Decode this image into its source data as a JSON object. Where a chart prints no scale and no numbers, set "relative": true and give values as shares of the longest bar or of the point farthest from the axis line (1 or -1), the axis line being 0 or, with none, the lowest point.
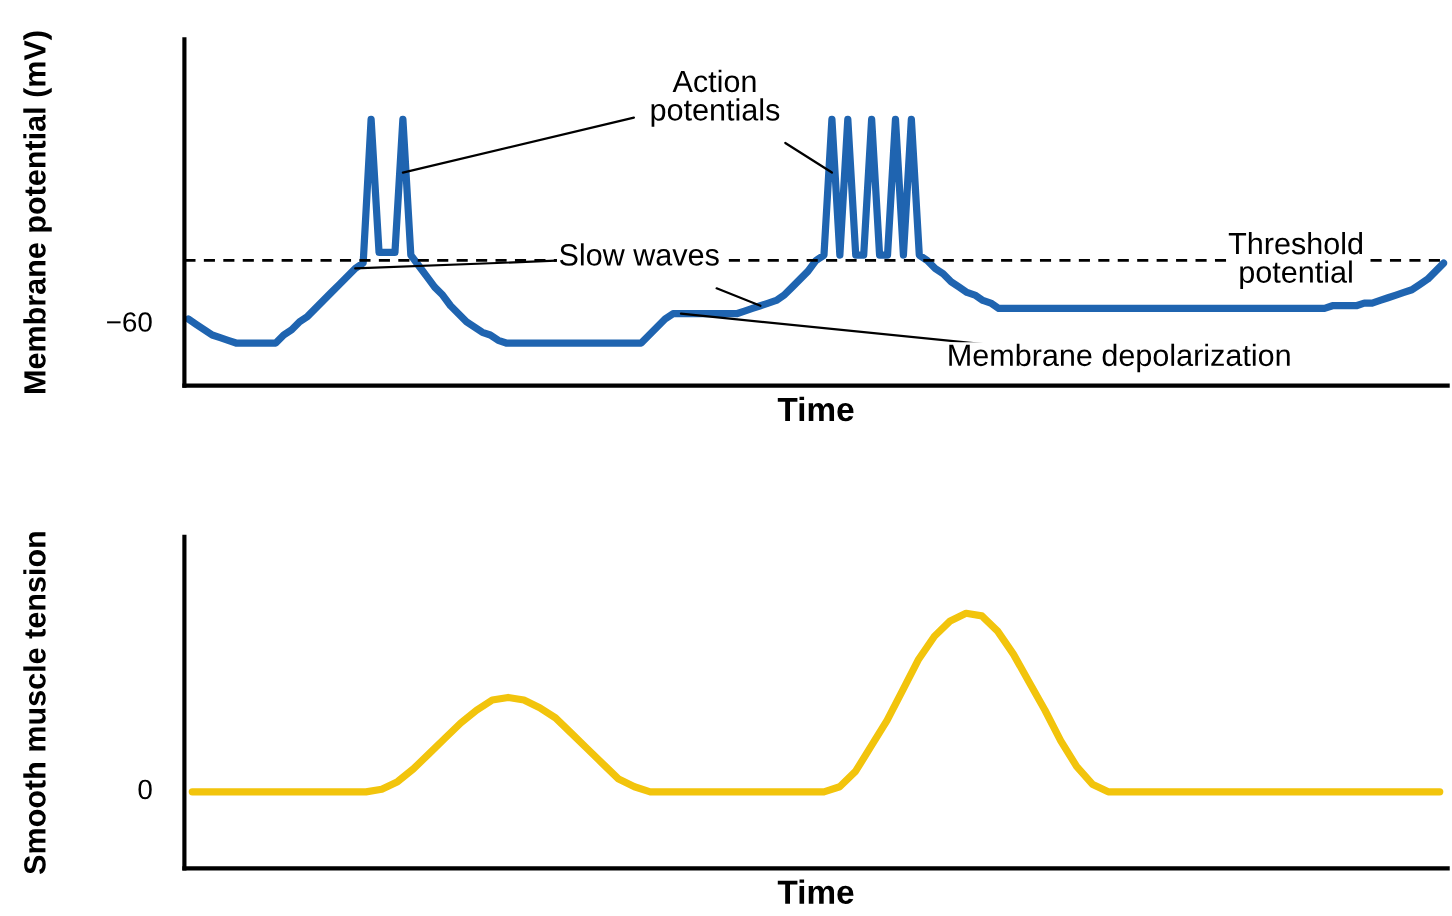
{
  "chart_data": [
    {
      "type": "line",
      "relative": true,
      "tick_labels": false,
      "xlabel": "Time",
      "ylabel": "Membrane potential (mV)",
      "categories": [
        null,
        null,
        null,
        null,
        null,
        null,
        null,
        null,
        null,
        null,
        null,
        null,
        null,
        null,
        null,
        null,
        null,
        null,
        null,
        null,
        null,
        null,
        null,
        null,
        null,
        null,
        null,
        null,
        null,
        null,
        null,
        null,
        null,
        null,
        null,
        null,
        null,
        null,
        null,
        null,
        null,
        null,
        null,
        null,
        null,
        null,
        null,
        null,
        null,
        null,
        null,
        null,
        null,
        null,
        null,
        null,
        null,
        null,
        null,
        null,
        null,
        null,
        null,
        null,
        null,
        null,
        null,
        null,
        null,
        null,
        null,
        null,
        null,
        null,
        null,
        null,
        null,
        null,
        null,
        null,
        null,
        null,
        null,
        null,
        null,
        null,
        null,
        null,
        null,
        null,
        null,
        null,
        null,
        null,
        null,
        null,
        null,
        null,
        null,
        null,
        null,
        null,
        null,
        null,
        null,
        null,
        null,
        null,
        null,
        null,
        null,
        null,
        null,
        null,
        null,
        null,
        null,
        null,
        null,
        null,
        null,
        null,
        null,
        null,
        null,
        null,
        null,
        null,
        null,
        null,
        null,
        null,
        null,
        null,
        null,
        null,
        null,
        null,
        null,
        null,
        null,
        null,
        null,
        null,
        null,
        null,
        null,
        null,
        null,
        null,
        null,
        null,
        null,
        null,
        null,
        null,
        null,
        null,
        null
      ],
      "series": [
        {
          "color": "#1f64b0",
          "values": [
            0.25,
            0.23,
            0.21,
            0.19,
            0.18,
            0.17,
            0.16,
            0.16,
            0.16,
            0.16,
            0.16,
            0.16,
            0.19,
            0.21,
            0.24,
            0.26,
            0.29,
            0.32,
            0.35,
            0.38,
            0.41,
            0.44,
            0.46,
            1.0,
            0.5,
            0.5,
            0.5,
            1.0,
            0.49,
            0.45,
            0.41,
            0.37,
            0.34,
            0.3,
            0.27,
            0.24,
            0.22,
            0.2,
            0.19,
            0.17,
            0.16,
            0.16,
            0.16,
            0.16,
            0.16,
            0.16,
            0.16,
            0.16,
            0.16,
            0.16,
            0.16,
            0.16,
            0.16,
            0.16,
            0.16,
            0.16,
            0.16,
            0.16,
            0.19,
            0.22,
            0.25,
            0.27,
            0.27,
            0.27,
            0.27,
            0.27,
            0.27,
            0.27,
            0.27,
            0.27,
            0.28,
            0.29,
            0.3,
            0.31,
            0.32,
            0.34,
            0.37,
            0.4,
            0.43,
            0.47,
            0.49,
            1.0,
            0.49,
            1.0,
            0.49,
            0.49,
            1.0,
            0.49,
            0.49,
            1.0,
            0.49,
            1.0,
            0.49,
            0.47,
            0.44,
            0.42,
            0.39,
            0.37,
            0.35,
            0.34,
            0.32,
            0.31,
            0.29,
            0.29,
            0.29,
            0.29,
            0.29,
            0.29,
            0.29,
            0.29,
            0.29,
            0.29,
            0.29,
            0.29,
            0.29,
            0.29,
            0.29,
            0.29,
            0.29,
            0.29,
            0.29,
            0.29,
            0.29,
            0.29,
            0.29,
            0.29,
            0.29,
            0.29,
            0.29,
            0.29,
            0.29,
            0.29,
            0.29,
            0.29,
            0.29,
            0.29,
            0.29,
            0.29,
            0.29,
            0.29,
            0.29,
            0.29,
            0.29,
            0.29,
            0.3,
            0.3,
            0.3,
            0.3,
            0.31,
            0.31,
            0.32,
            0.33,
            0.34,
            0.35,
            0.36,
            0.38,
            0.4,
            0.43,
            0.46
          ]
        }
      ],
      "ref_lines": [
        {
          "axis": "y",
          "value": 0.47,
          "label": "Threshold\npotential",
          "color": "#000000",
          "line_style": "dashed"
        }
      ],
      "annotations": [
        "Action\npotentials",
        "Slow waves",
        "Membrane depolarization",
        "−60"
      ]
    },
    {
      "type": "line",
      "relative": true,
      "tick_labels": false,
      "xlabel": "Time",
      "ylabel": "Smooth muscle tension",
      "categories": [
        null,
        null,
        null,
        null,
        null,
        null,
        null,
        null,
        null,
        null,
        null,
        null,
        null,
        null,
        null,
        null,
        null,
        null,
        null,
        null,
        null,
        null,
        null,
        null,
        null,
        null,
        null,
        null,
        null,
        null,
        null,
        null,
        null,
        null,
        null,
        null,
        null,
        null,
        null,
        null,
        null,
        null,
        null,
        null,
        null,
        null,
        null,
        null,
        null,
        null,
        null,
        null,
        null,
        null,
        null,
        null,
        null,
        null,
        null,
        null,
        null,
        null,
        null,
        null,
        null,
        null,
        null,
        null,
        null,
        null,
        null,
        null,
        null,
        null,
        null,
        null,
        null,
        null,
        null,
        null
      ],
      "series": [
        {
          "color": "#f2c40c",
          "values": [
            0.3,
            0.3,
            0.3,
            0.3,
            0.3,
            0.3,
            0.3,
            0.3,
            0.3,
            0.3,
            0.3,
            0.3,
            0.31,
            0.34,
            0.39,
            0.45,
            0.51,
            0.57,
            0.62,
            0.66,
            0.67,
            0.66,
            0.63,
            0.59,
            0.53,
            0.47,
            0.41,
            0.35,
            0.32,
            0.3,
            0.3,
            0.3,
            0.3,
            0.3,
            0.3,
            0.3,
            0.3,
            0.3,
            0.3,
            0.3,
            0.3,
            0.32,
            0.38,
            0.48,
            0.58,
            0.7,
            0.82,
            0.91,
            0.97,
            1.0,
            0.99,
            0.93,
            0.84,
            0.73,
            0.62,
            0.5,
            0.4,
            0.33,
            0.3,
            0.3,
            0.3,
            0.3,
            0.3,
            0.3,
            0.3,
            0.3,
            0.3,
            0.3,
            0.3,
            0.3,
            0.3,
            0.3,
            0.3,
            0.3,
            0.3,
            0.3,
            0.3,
            0.3,
            0.3,
            0.3
          ]
        }
      ],
      "annotations": [
        "0"
      ]
    }
  ]
}
